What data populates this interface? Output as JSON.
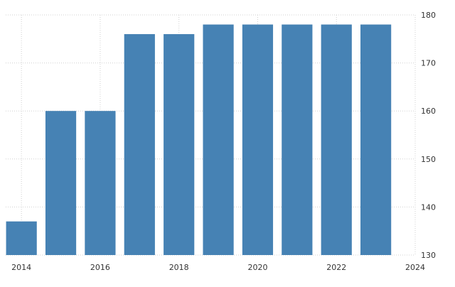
{
  "chart_data": {
    "type": "bar",
    "title": "",
    "xlabel": "",
    "ylabel": "",
    "x": [
      2014,
      2015,
      2016,
      2017,
      2018,
      2019,
      2020,
      2021,
      2022,
      2023
    ],
    "values": [
      137,
      160,
      160,
      176,
      176,
      178,
      178,
      178,
      178,
      178
    ],
    "ylim": [
      130,
      180
    ],
    "xlim": [
      2013.6,
      2024
    ],
    "yticks": [
      130,
      140,
      150,
      160,
      170,
      180
    ],
    "xticks": [
      2014,
      2016,
      2018,
      2020,
      2022,
      2024
    ],
    "ytick_labels": [
      "130",
      "140",
      "150",
      "160",
      "170",
      "180"
    ],
    "xtick_labels": [
      "2014",
      "2016",
      "2018",
      "2020",
      "2022",
      "2024"
    ],
    "grid": true,
    "y_axis_side": "right",
    "colors": {
      "bar": "#4682b4",
      "grid": "#d0d0d0"
    }
  }
}
